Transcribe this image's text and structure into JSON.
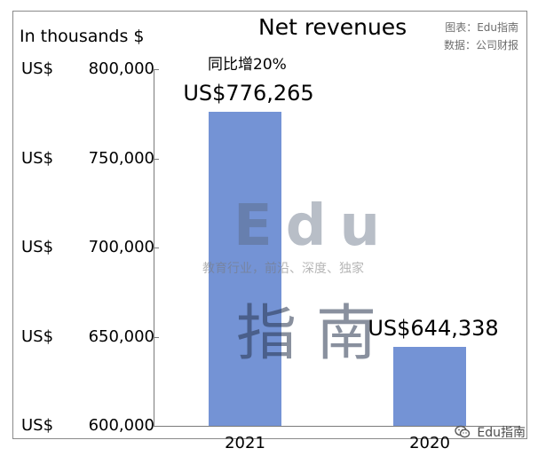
{
  "header": {
    "unit_label": "In thousands $",
    "title": "Net revenues",
    "credit_line_1": "图表：Edu指南",
    "credit_line_2": "数据：公司财报"
  },
  "annotation": "同比增20%",
  "watermark": {
    "main": "Edu",
    "sub": "教育行业，前沿、深度、独家",
    "cn": "指南"
  },
  "footer": {
    "brand": "Edu指南",
    "icon": "wechat-icon"
  },
  "chart_data": {
    "type": "bar",
    "title": "Net revenues",
    "ylabel": "In thousands $",
    "categories": [
      "2021",
      "2020"
    ],
    "values": [
      776265,
      644338
    ],
    "data_labels": [
      "US$776,265",
      "US$644,338"
    ],
    "ylim": [
      600000,
      800000
    ],
    "yticks": [
      {
        "value": 800000,
        "currency": "US$",
        "label": "800,000"
      },
      {
        "value": 750000,
        "currency": "US$",
        "label": "750,000"
      },
      {
        "value": 700000,
        "currency": "US$",
        "label": "700,000"
      },
      {
        "value": 650000,
        "currency": "US$",
        "label": "650,000"
      },
      {
        "value": 600000,
        "currency": "US$",
        "label": "600,000"
      }
    ],
    "bar_color": "#7493d5",
    "grid": false,
    "legend": "none"
  }
}
